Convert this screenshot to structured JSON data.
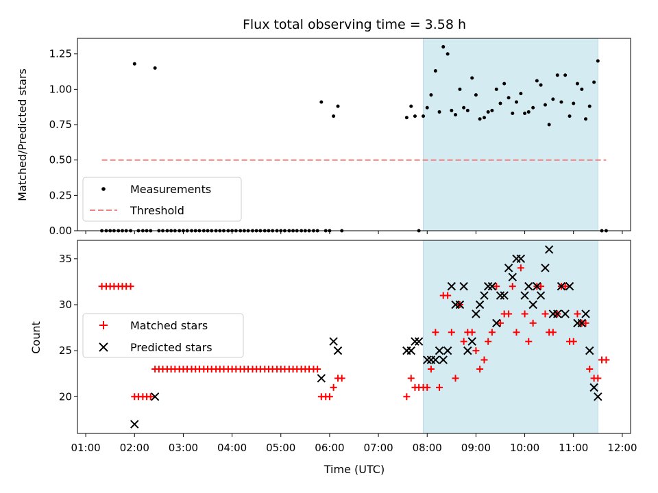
{
  "chart_data": [
    {
      "type": "scatter",
      "title": "Flux total observing time = 3.58 h",
      "xlabel": "",
      "ylabel": "Matched/Predicted stars",
      "ylim": [
        0,
        1.36
      ],
      "yticks": [
        "0.00",
        "0.25",
        "0.50",
        "0.75",
        "1.00",
        "1.25"
      ],
      "ytick_values": [
        0,
        0.25,
        0.5,
        0.75,
        1.0,
        1.25
      ],
      "xlim": [
        0.83,
        12.17
      ],
      "highlight_span_hours": [
        7.92,
        11.5
      ],
      "highlight_color": "#d4ebf2",
      "legend_position": "lower-left",
      "threshold": {
        "name": "Threshold",
        "y": 0.5,
        "x_hours": [
          1.33,
          11.67
        ],
        "color": "#f08080"
      },
      "series": [
        {
          "name": "Measurements",
          "color": "#000000",
          "x_hours": [
            1.33,
            1.42,
            1.5,
            1.58,
            1.67,
            1.75,
            1.83,
            1.92,
            2.0,
            2.08,
            2.17,
            2.25,
            2.33,
            2.42,
            2.5,
            2.58,
            2.67,
            2.75,
            2.83,
            2.92,
            3.0,
            3.08,
            3.17,
            3.25,
            3.33,
            3.42,
            3.5,
            3.58,
            3.67,
            3.75,
            3.83,
            3.92,
            4.0,
            4.08,
            4.17,
            4.25,
            4.33,
            4.42,
            4.5,
            4.58,
            4.67,
            4.75,
            4.83,
            4.92,
            5.0,
            5.08,
            5.17,
            5.25,
            5.33,
            5.42,
            5.5,
            5.58,
            5.67,
            5.75,
            5.83,
            5.92,
            6.0,
            6.08,
            6.17,
            6.25,
            7.58,
            7.67,
            7.75,
            7.83,
            7.92,
            8.0,
            8.08,
            8.17,
            8.25,
            8.33,
            8.42,
            8.5,
            8.58,
            8.67,
            8.75,
            8.83,
            8.92,
            9.0,
            9.08,
            9.17,
            9.25,
            9.33,
            9.42,
            9.5,
            9.58,
            9.67,
            9.75,
            9.83,
            9.92,
            10.0,
            10.08,
            10.17,
            10.25,
            10.33,
            10.42,
            10.5,
            10.58,
            10.67,
            10.75,
            10.83,
            10.92,
            11.0,
            11.08,
            11.17,
            11.25,
            11.33,
            11.42,
            11.5,
            11.58,
            11.67
          ],
          "y": [
            0,
            0,
            0,
            0,
            0,
            0,
            0,
            0,
            1.18,
            0,
            0,
            0,
            0,
            1.15,
            0,
            0,
            0,
            0,
            0,
            0,
            0,
            0,
            0,
            0,
            0,
            0,
            0,
            0,
            0,
            0,
            0,
            0,
            0,
            0,
            0,
            0,
            0,
            0,
            0,
            0,
            0,
            0,
            0,
            0,
            0,
            0,
            0,
            0,
            0,
            0,
            0,
            0,
            0,
            0,
            0.91,
            0,
            0,
            0.81,
            0.88,
            0,
            0.8,
            0.88,
            0.81,
            0,
            0.81,
            0.87,
            0.96,
            1.13,
            0.84,
            1.3,
            1.25,
            0.85,
            0.82,
            1.0,
            0.87,
            0.85,
            1.08,
            0.96,
            0.79,
            0.8,
            0.84,
            0.85,
            1.0,
            0.9,
            1.04,
            0.94,
            0.83,
            0.91,
            0.97,
            0.83,
            0.84,
            0.87,
            1.06,
            1.03,
            0.89,
            0.75,
            0.93,
            1.1,
            0.91,
            1.1,
            0.81,
            0.9,
            1.04,
            1.0,
            0.79,
            0.88,
            1.05,
            1.2,
            0,
            0
          ]
        }
      ]
    },
    {
      "type": "scatter",
      "title": "",
      "xlabel": "Time (UTC)",
      "ylabel": "Count",
      "ylim": [
        16,
        37
      ],
      "yticks": [
        "20",
        "25",
        "30",
        "35"
      ],
      "ytick_values": [
        20,
        25,
        30,
        35
      ],
      "xlim": [
        0.83,
        12.17
      ],
      "xticks": [
        "01:00",
        "02:00",
        "03:00",
        "04:00",
        "05:00",
        "06:00",
        "07:00",
        "08:00",
        "09:00",
        "10:00",
        "11:00",
        "12:00"
      ],
      "xtick_values": [
        1,
        2,
        3,
        4,
        5,
        6,
        7,
        8,
        9,
        10,
        11,
        12
      ],
      "highlight_span_hours": [
        7.92,
        11.5
      ],
      "legend_position": "center-left",
      "series": [
        {
          "name": "Matched stars",
          "marker": "plus",
          "color": "#ff0000",
          "x_hours": [
            1.33,
            1.42,
            1.5,
            1.58,
            1.67,
            1.75,
            1.83,
            1.92,
            2.0,
            2.08,
            2.17,
            2.25,
            2.33,
            2.42,
            2.5,
            2.58,
            2.67,
            2.75,
            2.83,
            2.92,
            3.0,
            3.08,
            3.17,
            3.25,
            3.33,
            3.42,
            3.5,
            3.58,
            3.67,
            3.75,
            3.83,
            3.92,
            4.0,
            4.08,
            4.17,
            4.25,
            4.33,
            4.42,
            4.5,
            4.58,
            4.67,
            4.75,
            4.83,
            4.92,
            5.0,
            5.08,
            5.17,
            5.25,
            5.33,
            5.42,
            5.5,
            5.58,
            5.67,
            5.75,
            5.83,
            5.92,
            6.0,
            6.08,
            6.17,
            6.25,
            7.58,
            7.67,
            7.75,
            7.83,
            7.92,
            8.0,
            8.08,
            8.17,
            8.25,
            8.33,
            8.42,
            8.5,
            8.58,
            8.67,
            8.75,
            8.83,
            8.92,
            9.0,
            9.08,
            9.17,
            9.25,
            9.33,
            9.42,
            9.5,
            9.58,
            9.67,
            9.75,
            9.83,
            9.92,
            10.0,
            10.08,
            10.17,
            10.25,
            10.33,
            10.42,
            10.5,
            10.58,
            10.67,
            10.75,
            10.83,
            10.92,
            11.0,
            11.08,
            11.17,
            11.25,
            11.33,
            11.42,
            11.5,
            11.58,
            11.67
          ],
          "y": [
            32,
            32,
            32,
            32,
            32,
            32,
            32,
            32,
            20,
            20,
            20,
            20,
            20,
            23,
            23,
            23,
            23,
            23,
            23,
            23,
            23,
            23,
            23,
            23,
            23,
            23,
            23,
            23,
            23,
            23,
            23,
            23,
            23,
            23,
            23,
            23,
            23,
            23,
            23,
            23,
            23,
            23,
            23,
            23,
            23,
            23,
            23,
            23,
            23,
            23,
            23,
            23,
            23,
            23,
            20,
            20,
            20,
            21,
            22,
            22,
            20,
            22,
            21,
            21,
            21,
            21,
            23,
            27,
            21,
            31,
            31,
            27,
            22,
            30,
            26,
            27,
            27,
            25,
            23,
            24,
            26,
            27,
            32,
            28,
            29,
            29,
            32,
            27,
            34,
            29,
            26,
            28,
            32,
            32,
            29,
            27,
            27,
            29,
            32,
            32,
            26,
            26,
            29,
            28,
            28,
            23,
            22,
            22,
            24,
            24
          ],
          "comment": ""
        },
        {
          "name": "Predicted stars",
          "marker": "x",
          "color": "#000000",
          "x_hours": [
            2.0,
            2.42,
            5.83,
            6.08,
            6.17,
            7.58,
            7.67,
            7.75,
            7.83,
            8.0,
            8.08,
            8.17,
            8.25,
            8.33,
            8.42,
            8.5,
            8.58,
            8.67,
            8.75,
            8.83,
            8.92,
            9.0,
            9.08,
            9.17,
            9.25,
            9.33,
            9.42,
            9.5,
            9.58,
            9.67,
            9.75,
            9.83,
            9.92,
            10.0,
            10.08,
            10.17,
            10.25,
            10.33,
            10.42,
            10.5,
            10.58,
            10.67,
            10.75,
            10.83,
            10.92,
            11.08,
            11.17,
            11.25,
            11.33,
            11.42,
            11.5
          ],
          "y": [
            17,
            20,
            22,
            26,
            25,
            25,
            25,
            26,
            26,
            24,
            24,
            24,
            25,
            24,
            25,
            32,
            30,
            30,
            32,
            25,
            26,
            29,
            30,
            31,
            32,
            32,
            28,
            31,
            31,
            34,
            33,
            35,
            35,
            31,
            32,
            30,
            32,
            31,
            34,
            36,
            29,
            29,
            32,
            29,
            32,
            28,
            28,
            29,
            25,
            21,
            20
          ]
        }
      ]
    }
  ]
}
